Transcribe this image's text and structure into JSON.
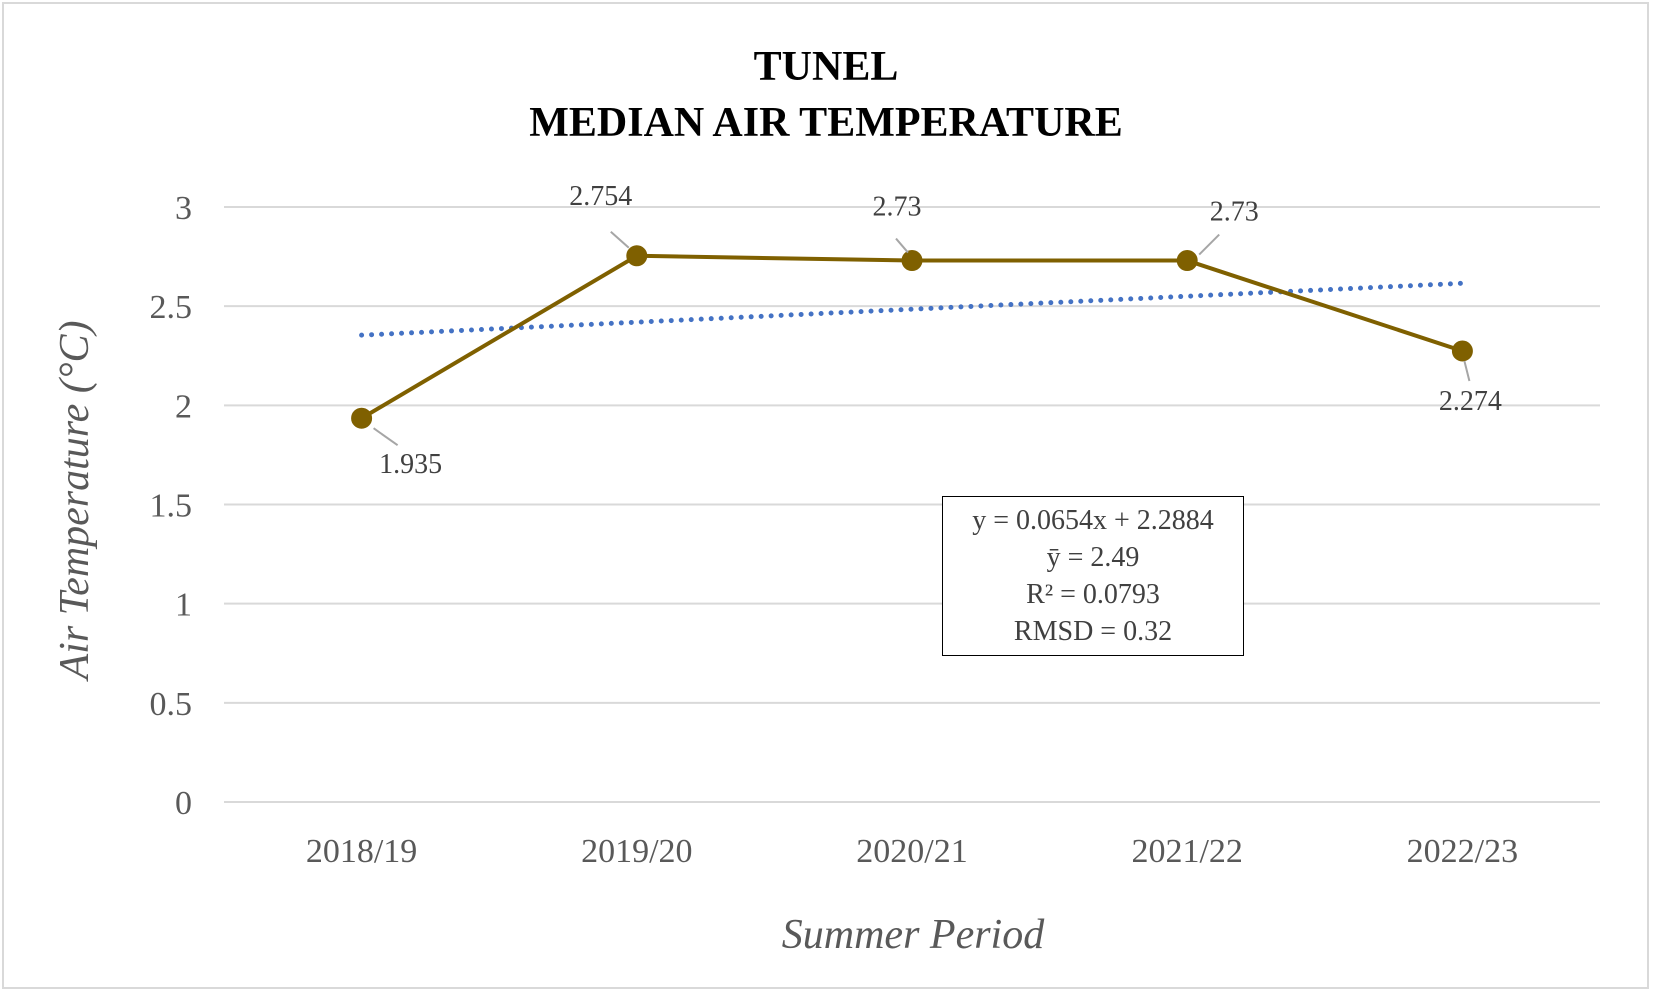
{
  "chart_data": {
    "type": "line",
    "title": [
      "TUNEL",
      "MEDIAN AIR TEMPERATURE"
    ],
    "xlabel": "Summer Period",
    "ylabel": "Air Temperature (°C)",
    "categories": [
      "2018/19",
      "2019/20",
      "2020/21",
      "2021/22",
      "2022/23"
    ],
    "series": [
      {
        "values": [
          1.935,
          2.754,
          2.73,
          2.73,
          2.274
        ],
        "color": "#7f6000",
        "marker": "circle",
        "data_labels": [
          "1.935",
          "2.754",
          "2.73",
          "2.73",
          "2.274"
        ]
      }
    ],
    "trendline": {
      "type": "linear",
      "slope": 0.0654,
      "intercept": 2.2884,
      "style": "dotted",
      "color": "#4472c4"
    },
    "ylim": [
      0,
      3
    ],
    "yticks": [
      "0",
      "0.5",
      "1",
      "1.5",
      "2",
      "2.5",
      "3"
    ],
    "grid": "horizontal",
    "stats_box": [
      "y = 0.0654x + 2.2884",
      "ȳ = 2.49",
      "R² = 0.0793",
      "RMSD = 0.32"
    ]
  }
}
